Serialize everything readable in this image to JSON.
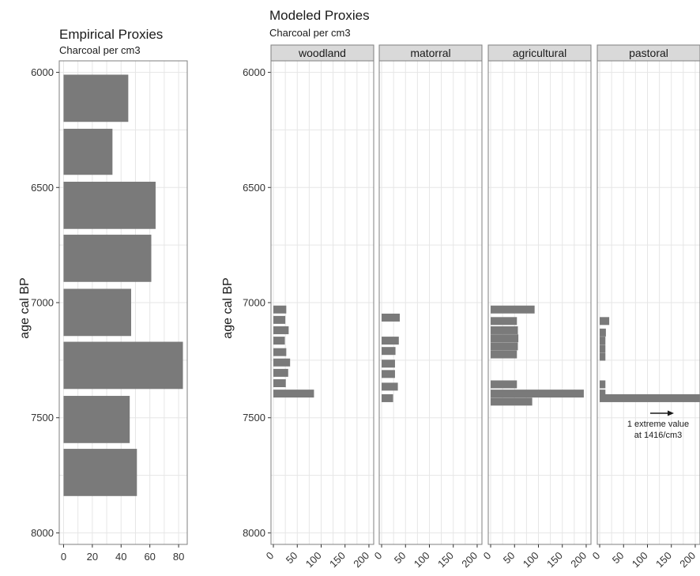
{
  "chart_data": [
    {
      "type": "bar",
      "orientation": "horizontal",
      "title": "Empirical Proxies",
      "subtitle": "Charcoal per cm3",
      "ylabel": "age cal BP",
      "xlabel": "",
      "ylim": [
        5950,
        8050
      ],
      "xlim": [
        -3,
        86
      ],
      "y_ticks": [
        6000,
        6500,
        7000,
        7500,
        8000
      ],
      "x_ticks": [
        0,
        20,
        40,
        60,
        80
      ],
      "grid": true,
      "bars": [
        {
          "y0": 6010,
          "y1": 6215,
          "value": 45
        },
        {
          "y0": 6245,
          "y1": 6445,
          "value": 34
        },
        {
          "y0": 6475,
          "y1": 6680,
          "value": 64
        },
        {
          "y0": 6705,
          "y1": 6910,
          "value": 61
        },
        {
          "y0": 6940,
          "y1": 7145,
          "value": 47
        },
        {
          "y0": 7170,
          "y1": 7375,
          "value": 83
        },
        {
          "y0": 7405,
          "y1": 7610,
          "value": 46
        },
        {
          "y0": 7635,
          "y1": 7840,
          "value": 51
        }
      ]
    },
    {
      "type": "bar",
      "orientation": "horizontal",
      "title": "Modeled Proxies",
      "subtitle": "Charcoal per cm3",
      "ylabel": "age cal BP",
      "xlabel": "",
      "ylim": [
        5950,
        8050
      ],
      "xlim": [
        -5,
        210
      ],
      "y_ticks": [
        6000,
        6500,
        7000,
        7500,
        8000
      ],
      "x_ticks": [
        0,
        50,
        100,
        150,
        200
      ],
      "x_tick_labels": [
        "0",
        "50",
        "100",
        "150",
        "200"
      ],
      "grid": true,
      "panels": [
        {
          "name": "woodland",
          "bars": [
            {
              "y": 7030,
              "value": 27
            },
            {
              "y": 7075,
              "value": 25
            },
            {
              "y": 7120,
              "value": 32
            },
            {
              "y": 7165,
              "value": 24
            },
            {
              "y": 7215,
              "value": 27
            },
            {
              "y": 7260,
              "value": 35
            },
            {
              "y": 7305,
              "value": 31
            },
            {
              "y": 7350,
              "value": 26
            },
            {
              "y": 7395,
              "value": 85
            }
          ]
        },
        {
          "name": "matorral",
          "bars": [
            {
              "y": 7065,
              "value": 38
            },
            {
              "y": 7165,
              "value": 36
            },
            {
              "y": 7210,
              "value": 29
            },
            {
              "y": 7265,
              "value": 28
            },
            {
              "y": 7310,
              "value": 28
            },
            {
              "y": 7365,
              "value": 34
            },
            {
              "y": 7415,
              "value": 24
            }
          ]
        },
        {
          "name": "agricultural",
          "bars": [
            {
              "y": 7030,
              "value": 92
            },
            {
              "y": 7080,
              "value": 55
            },
            {
              "y": 7120,
              "value": 57
            },
            {
              "y": 7155,
              "value": 58
            },
            {
              "y": 7190,
              "value": 57
            },
            {
              "y": 7225,
              "value": 55
            },
            {
              "y": 7355,
              "value": 55
            },
            {
              "y": 7395,
              "value": 195
            },
            {
              "y": 7430,
              "value": 87
            }
          ]
        },
        {
          "name": "pastoral",
          "bars": [
            {
              "y": 7080,
              "value": 20
            },
            {
              "y": 7130,
              "value": 13
            },
            {
              "y": 7165,
              "value": 12
            },
            {
              "y": 7200,
              "value": 12
            },
            {
              "y": 7235,
              "value": 12
            },
            {
              "y": 7355,
              "value": 12
            },
            {
              "y": 7395,
              "value": 12
            },
            {
              "y": 7415,
              "value": 1416
            }
          ],
          "annotation": {
            "line1": "1 extreme value",
            "line2": "at 1416/cm3"
          }
        }
      ]
    }
  ],
  "colors": {
    "bar": "#7a7a7a",
    "grid": "#e6e6e6",
    "panel_border": "#7f7f7f",
    "strip_fill": "#d9d9d9",
    "strip_border": "#7f7f7f",
    "text": "#1a1a1a"
  }
}
